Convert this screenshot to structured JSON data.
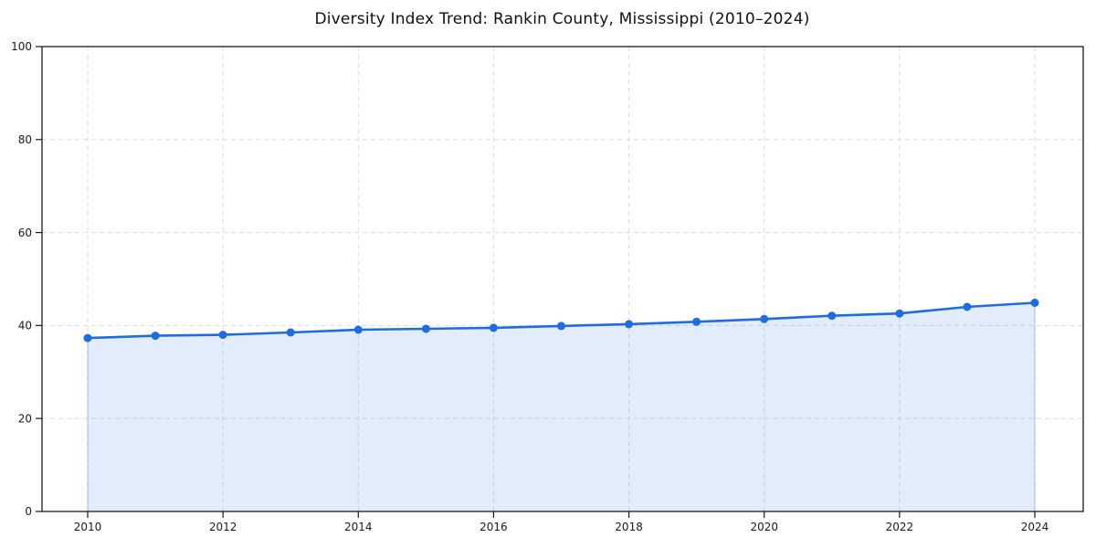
{
  "chart_data": {
    "type": "area",
    "title": "Diversity Index Trend: Rankin County, Mississippi (2010–2024)",
    "x": [
      2010,
      2011,
      2012,
      2013,
      2014,
      2015,
      2016,
      2017,
      2018,
      2019,
      2020,
      2021,
      2022,
      2023,
      2024
    ],
    "values": [
      37.3,
      37.8,
      38.0,
      38.5,
      39.1,
      39.3,
      39.5,
      39.9,
      40.3,
      40.8,
      41.4,
      42.1,
      42.6,
      44.0,
      44.9
    ],
    "xlabel": "",
    "ylabel": "",
    "ylim": [
      0,
      100
    ],
    "yticks": [
      0,
      20,
      40,
      60,
      80,
      100
    ],
    "xticks": [
      2010,
      2012,
      2014,
      2016,
      2018,
      2020,
      2022,
      2024
    ],
    "grid": true,
    "grid_style": "dashed",
    "legend": false,
    "colors": {
      "line": "#1f6ce0",
      "marker": "#1f6ce0",
      "fill": "rgba(31,108,224,0.13)",
      "fill_edge": "rgba(31,108,224,0.28)",
      "grid": "#dedede",
      "axis": "#1a1a1a",
      "tick_label": "#1a1a1a",
      "title": "#111111",
      "background": "#ffffff"
    }
  }
}
